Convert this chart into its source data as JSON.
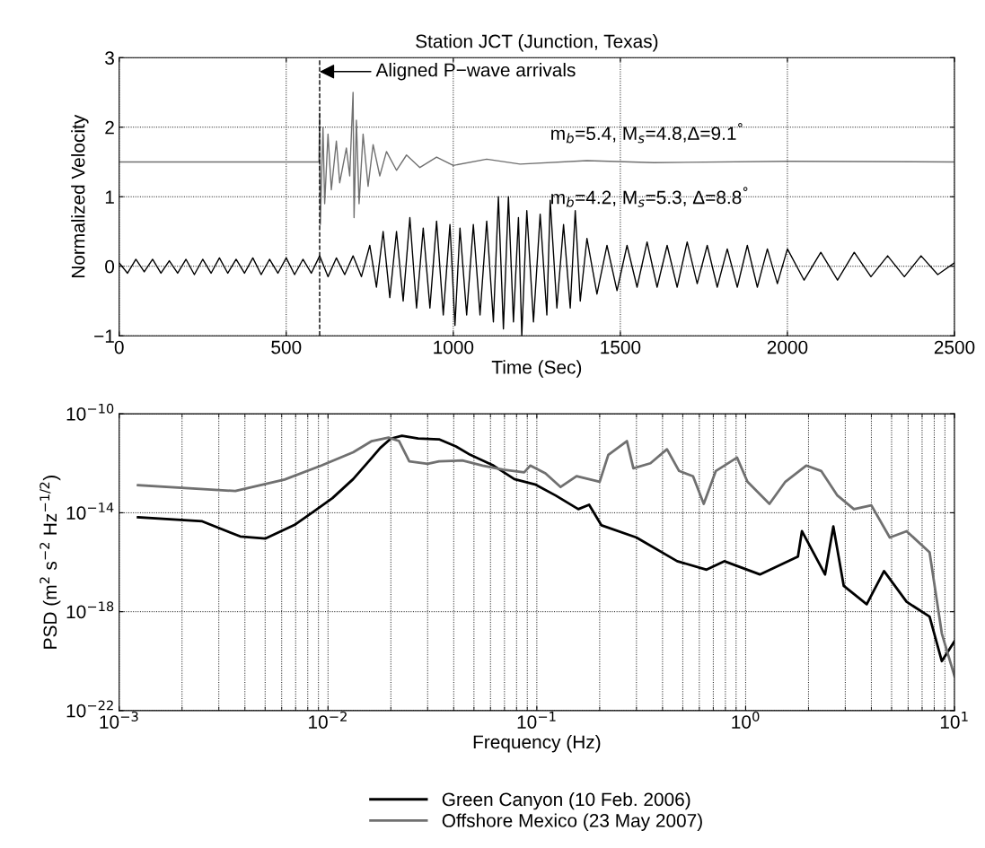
{
  "chart_data": [
    {
      "type": "line",
      "title": "Station JCT (Junction, Texas)",
      "xlabel": "Time (Sec)",
      "ylabel": "Normalized Velocity",
      "xlim": [
        0,
        2500
      ],
      "ylim": [
        -1,
        3
      ],
      "xticks": [
        0,
        500,
        1000,
        1500,
        2000,
        2500
      ],
      "yticks": [
        {
          "value": -1,
          "label": "−1"
        },
        0,
        1,
        2,
        3
      ],
      "grid": true,
      "line_style": "solid",
      "ref_lines": [
        {
          "axis": "x",
          "value": 600,
          "color": "#000000",
          "line_style": "dashed"
        }
      ],
      "annotations": [
        "Aligned P−wave arrivals",
        "m$_{b}$=5.4, M$_{s}$=4.8,Δ=9.1$^{°}$",
        "m$_{b}$=4.2, M$_{s}$=5.3, Δ=8.8$^{°}$"
      ],
      "series": [
        {
          "color": "#707070",
          "x": [
            0,
            598,
            600,
            602,
            610,
            615,
            625,
            635,
            650,
            660,
            680,
            690,
            700,
            703,
            710,
            718,
            730,
            745,
            760,
            780,
            800,
            830,
            860,
            900,
            950,
            1000,
            1100,
            1200,
            1400,
            1600,
            2000,
            2500
          ],
          "values": [
            1.5,
            1.5,
            2.2,
            0.6,
            2.0,
            0.9,
            1.9,
            1.1,
            1.8,
            1.2,
            1.7,
            1.3,
            2.5,
            0.7,
            2.1,
            0.9,
            1.9,
            1.15,
            1.75,
            1.3,
            1.65,
            1.38,
            1.6,
            1.42,
            1.57,
            1.45,
            1.54,
            1.47,
            1.52,
            1.49,
            1.51,
            1.5
          ]
        },
        {
          "color": "#000000",
          "x": [
            0,
            25,
            50,
            75,
            100,
            125,
            150,
            175,
            200,
            225,
            250,
            275,
            300,
            325,
            350,
            375,
            400,
            425,
            450,
            475,
            500,
            525,
            550,
            575,
            600,
            625,
            650,
            675,
            700,
            725,
            750,
            770,
            790,
            810,
            830,
            850,
            870,
            890,
            910,
            930,
            950,
            970,
            990,
            1005,
            1020,
            1040,
            1060,
            1080,
            1100,
            1120,
            1135,
            1150,
            1165,
            1180,
            1195,
            1205,
            1220,
            1240,
            1260,
            1280,
            1290,
            1310,
            1330,
            1350,
            1365,
            1380,
            1400,
            1430,
            1460,
            1490,
            1520,
            1550,
            1580,
            1610,
            1640,
            1670,
            1700,
            1730,
            1760,
            1790,
            1820,
            1850,
            1880,
            1910,
            1940,
            1970,
            2000,
            2050,
            2100,
            2150,
            2200,
            2250,
            2300,
            2350,
            2400,
            2450,
            2500
          ],
          "values": [
            0.05,
            -0.1,
            0.1,
            -0.08,
            0.1,
            -0.1,
            0.08,
            -0.1,
            0.1,
            -0.12,
            0.1,
            -0.1,
            0.12,
            -0.1,
            0.1,
            -0.1,
            0.12,
            -0.12,
            0.1,
            -0.1,
            0.12,
            -0.12,
            0.1,
            -0.1,
            0.15,
            -0.15,
            0.12,
            -0.12,
            0.15,
            -0.15,
            0.3,
            -0.3,
            0.5,
            -0.45,
            0.5,
            -0.5,
            0.7,
            -0.6,
            0.55,
            -0.6,
            0.65,
            -0.7,
            0.6,
            -0.85,
            0.55,
            -0.7,
            0.6,
            -0.7,
            0.65,
            -0.8,
            1.0,
            -0.9,
            1.0,
            -0.8,
            0.7,
            -1.0,
            0.8,
            -0.8,
            0.75,
            -0.7,
            0.95,
            -0.6,
            0.6,
            -0.6,
            0.8,
            -0.5,
            0.4,
            -0.4,
            0.3,
            -0.35,
            0.3,
            -0.3,
            0.35,
            -0.3,
            0.3,
            -0.3,
            0.35,
            -0.25,
            0.3,
            -0.3,
            0.25,
            -0.3,
            0.3,
            -0.3,
            0.25,
            -0.25,
            0.25,
            -0.2,
            0.2,
            -0.2,
            0.2,
            -0.15,
            0.15,
            -0.15,
            0.15,
            -0.12,
            0.05
          ]
        }
      ]
    },
    {
      "type": "line",
      "xlabel": "Frequency (Hz)",
      "ylabel": "PSD (m$^{2}$ s$^{−2}$ Hz$^{−1/2}$)",
      "log": "xy",
      "xlim": [
        0.001,
        10
      ],
      "ylim": [
        1e-22,
        1e-10
      ],
      "xticks": [
        {
          "value": 0.001,
          "label": "10$^{−3}$"
        },
        {
          "value": 0.01,
          "label": "10$^{−2}$"
        },
        {
          "value": 0.1,
          "label": "10$^{−1}$"
        },
        {
          "value": 1,
          "label": "10$^{0}$"
        },
        {
          "value": 10,
          "label": "10$^{1}$"
        }
      ],
      "yticks": [
        {
          "value": 1e-22,
          "label": "10$^{−22}$"
        },
        {
          "value": 1e-18,
          "label": "10$^{−18}$"
        },
        {
          "value": 1e-14,
          "label": "10$^{−14}$"
        },
        {
          "value": 1e-10,
          "label": "10$^{−10}$"
        }
      ],
      "grid": true,
      "legend": "bottom",
      "line_style": "solid",
      "series": [
        {
          "name": "Green Canyon (10 Feb. 2006)",
          "color": "#000000",
          "x": [
            0.00123,
            0.0025,
            0.0038,
            0.005,
            0.0069,
            0.0085,
            0.0105,
            0.0132,
            0.0158,
            0.0178,
            0.02,
            0.0226,
            0.027,
            0.034,
            0.041,
            0.048,
            0.062,
            0.078,
            0.098,
            0.123,
            0.158,
            0.178,
            0.204,
            0.3,
            0.47,
            0.65,
            0.79,
            1.17,
            1.78,
            1.86,
            2.4,
            2.63,
            2.95,
            3.8,
            4.6,
            5.9,
            7.6,
            8.7,
            10
          ],
          "values": [
            6.6e-15,
            4.5e-15,
            1.1e-15,
            9e-16,
            3.2e-15,
            1.1e-14,
            3.9e-14,
            2.3e-13,
            1.3e-12,
            4.2e-12,
            1e-11,
            1.3e-11,
            1e-11,
            9.3e-12,
            4.8e-12,
            2.2e-12,
            8.1e-13,
            2.3e-13,
            1.4e-13,
            5e-14,
            1.4e-14,
            2.1e-14,
            3.1e-15,
            1e-15,
            1.1e-16,
            5e-17,
            1.1e-16,
            3.2e-17,
            1.7e-16,
            1.8e-15,
            3.2e-17,
            2.8e-15,
            1.1e-17,
            2e-18,
            4.4e-17,
            2.5e-18,
            6.3e-19,
            1e-20,
            6.3e-20
          ]
        },
        {
          "name": "Offshore Mexico (23 May 2007)",
          "color": "#707070",
          "x": [
            0.00123,
            0.0036,
            0.0062,
            0.0093,
            0.0132,
            0.0162,
            0.0195,
            0.0219,
            0.0245,
            0.03,
            0.034,
            0.044,
            0.055,
            0.069,
            0.087,
            0.093,
            0.11,
            0.13,
            0.155,
            0.2,
            0.22,
            0.27,
            0.29,
            0.35,
            0.42,
            0.48,
            0.56,
            0.63,
            0.72,
            0.91,
            1.02,
            1.3,
            1.55,
            1.95,
            2.3,
            2.75,
            3.3,
            4.0,
            4.9,
            5.9,
            7.6,
            8.7,
            10
          ],
          "values": [
            1.3e-13,
            7.6e-14,
            2.2e-13,
            8.1e-13,
            2.8e-12,
            7.9e-12,
            1.1e-11,
            7.9e-12,
            1.2e-12,
            9.5e-13,
            1.2e-12,
            1.3e-12,
            8.1e-13,
            5.5e-13,
            4.3e-13,
            8.1e-13,
            3.9e-13,
            1.1e-13,
            3e-13,
            1.8e-13,
            2.2e-12,
            7.9e-12,
            6.3e-13,
            1e-12,
            3.7e-12,
            4.9e-13,
            3e-13,
            2.3e-14,
            4.9e-13,
            1.7e-12,
            1.8e-13,
            2.3e-14,
            1.8e-13,
            8.1e-13,
            4.9e-13,
            5e-14,
            1.4e-14,
            2e-14,
            1e-15,
            1.8e-15,
            2.5e-16,
            1.3e-19,
            2.5e-21
          ]
        }
      ]
    }
  ]
}
